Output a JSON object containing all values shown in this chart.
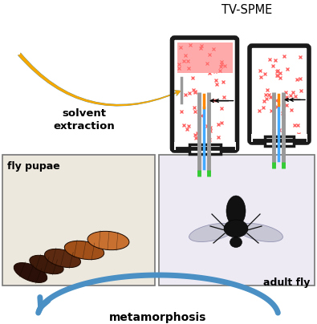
{
  "title": "TV-SPME",
  "label_solvent": "solvent\nextraction",
  "label_metamorphosis": "metamorphosis",
  "label_fly_pupae": "fly pupae",
  "label_adult_fly": "adult fly",
  "bg_color": "#ffffff",
  "arrow_orange_color": "#F5A800",
  "arrow_blue_color": "#4A90C4",
  "vial_border_color": "#1a1a1a",
  "vial_fill_color": "#FFAAAA",
  "dot_color": "#FF6666",
  "needle_color": "#999999",
  "fiber_color_blue": "#44AAFF",
  "fiber_color_orange": "#FF8800",
  "pupae_colors": [
    "#2a1008",
    "#3d1a0a",
    "#5c2a10",
    "#a05018",
    "#c87030"
  ],
  "fly_wing_color": "#c0c0d0",
  "fly_body_color": "#111111"
}
